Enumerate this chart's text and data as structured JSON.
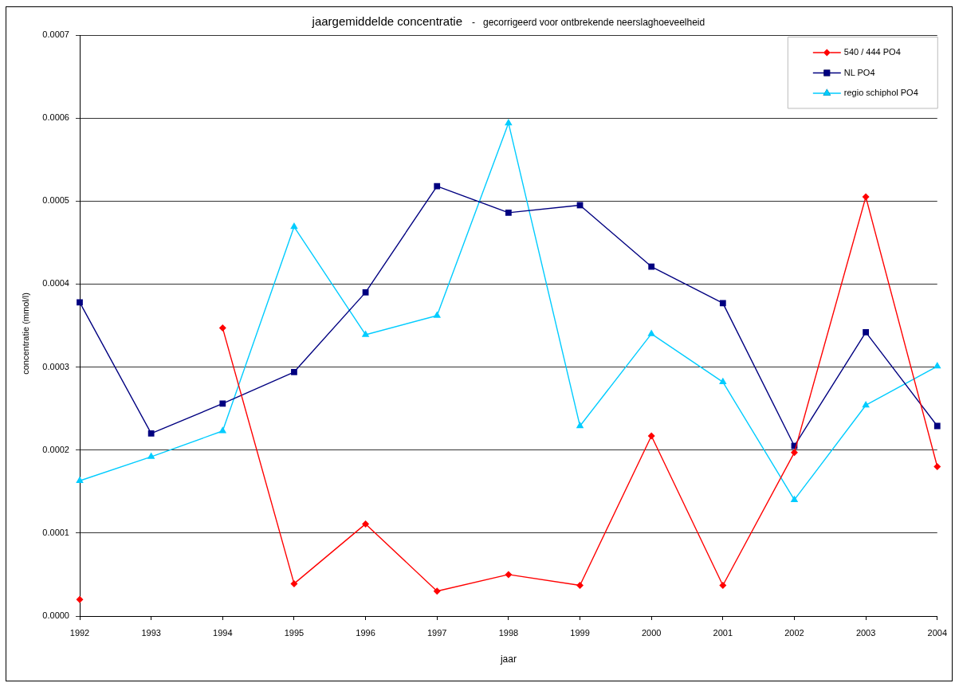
{
  "chart_data": {
    "type": "line",
    "title": "jaargemiddelde concentratie",
    "subtitle": "-   gecorrigeerd voor ontbrekende neerslaghoeveelheid",
    "xlabel": "jaar",
    "ylabel": "concentratie (mmol/l)",
    "categories": [
      "1992",
      "1993",
      "1994",
      "1995",
      "1996",
      "1997",
      "1998",
      "1999",
      "2000",
      "2001",
      "2002",
      "2003",
      "2004"
    ],
    "series": [
      {
        "name": "540 / 444 PO4",
        "color": "#ff0000",
        "marker": "diamond",
        "values": [
          2e-05,
          null,
          0.000347,
          3.9e-05,
          0.000111,
          3e-05,
          5e-05,
          3.7e-05,
          0.000217,
          3.7e-05,
          0.000197,
          0.000505,
          0.00018
        ]
      },
      {
        "name": "NL PO4",
        "color": "#000080",
        "marker": "square",
        "values": [
          0.000378,
          0.00022,
          0.000256,
          0.000294,
          0.00039,
          0.000518,
          0.000486,
          0.000495,
          0.000421,
          0.000377,
          0.000205,
          0.000342,
          0.000229
        ]
      },
      {
        "name": "regio schiphol PO4",
        "color": "#00ccff",
        "marker": "triangle",
        "values": [
          0.000163,
          0.000192,
          0.000223,
          0.000469,
          0.000339,
          0.000362,
          0.000594,
          0.000229,
          0.00034,
          0.000282,
          0.00014,
          0.000254,
          0.000301
        ]
      }
    ],
    "ylim": [
      0,
      0.0007
    ],
    "yticks": [
      {
        "value": 0,
        "label": "0.0000"
      },
      0.0001,
      0.0002,
      0.0003,
      0.0004,
      0.0005,
      0.0006,
      0.0007
    ],
    "grid": "y",
    "legend": "top right"
  }
}
